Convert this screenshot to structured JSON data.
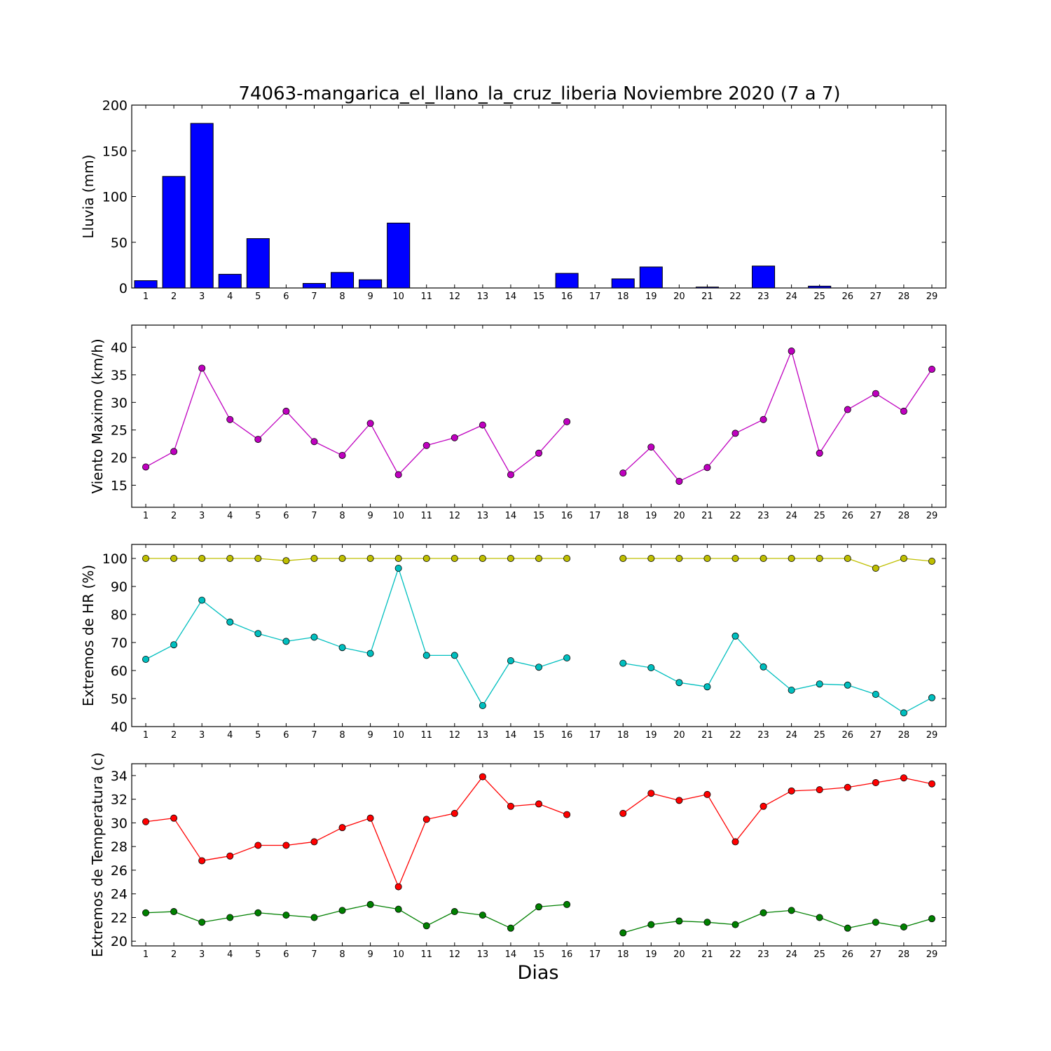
{
  "title": "74063-mangarica_el_llano_la_cruz_liberia Noviembre 2020  (7 a 7)",
  "xlabel": "Dias",
  "days": [
    1,
    2,
    3,
    4,
    5,
    6,
    7,
    8,
    9,
    10,
    11,
    12,
    13,
    14,
    15,
    16,
    17,
    18,
    19,
    20,
    21,
    22,
    23,
    24,
    25,
    26,
    27,
    28,
    29
  ],
  "chart_data": [
    {
      "type": "bar",
      "ylabel": "Lluvia (mm)",
      "ylim": [
        0,
        200
      ],
      "yticks": [
        0,
        50,
        100,
        150,
        200
      ],
      "categories": [
        1,
        2,
        3,
        4,
        5,
        6,
        7,
        8,
        9,
        10,
        11,
        12,
        13,
        14,
        15,
        16,
        17,
        18,
        19,
        20,
        21,
        22,
        23,
        24,
        25,
        26,
        27,
        28,
        29
      ],
      "series": [
        {
          "color": "#0000ff",
          "values": [
            8,
            122,
            180,
            15,
            54,
            0,
            5,
            17,
            9,
            71,
            0,
            0,
            0,
            0,
            0,
            16,
            0,
            10,
            23,
            0,
            1,
            0,
            24,
            0,
            2,
            0,
            0,
            0,
            0
          ]
        }
      ]
    },
    {
      "type": "line",
      "ylabel": "Viento Maximo (km/h)",
      "ylim": [
        11,
        44
      ],
      "yticks": [
        15,
        20,
        25,
        30,
        35,
        40
      ],
      "x": [
        1,
        2,
        3,
        4,
        5,
        6,
        7,
        8,
        9,
        10,
        11,
        12,
        13,
        14,
        15,
        16,
        17,
        18,
        19,
        20,
        21,
        22,
        23,
        24,
        25,
        26,
        27,
        28,
        29
      ],
      "series": [
        {
          "color": "#bf00bf",
          "values": [
            18.3,
            21.1,
            36.2,
            26.9,
            23.3,
            28.4,
            22.9,
            20.4,
            26.2,
            16.9,
            22.2,
            23.6,
            25.9,
            16.9,
            20.8,
            26.5,
            null,
            17.2,
            21.9,
            15.7,
            18.2,
            24.4,
            26.9,
            39.3,
            20.8,
            28.7,
            31.6,
            28.4,
            36.0
          ]
        }
      ]
    },
    {
      "type": "line",
      "ylabel": "Extremos de HR (%)",
      "ylim": [
        40,
        105
      ],
      "yticks": [
        40,
        50,
        60,
        70,
        80,
        90,
        100
      ],
      "x": [
        1,
        2,
        3,
        4,
        5,
        6,
        7,
        8,
        9,
        10,
        11,
        12,
        13,
        14,
        15,
        16,
        17,
        18,
        19,
        20,
        21,
        22,
        23,
        24,
        25,
        26,
        27,
        28,
        29
      ],
      "series": [
        {
          "color": "#bfbf00",
          "values": [
            100,
            100,
            100,
            100,
            100,
            99.2,
            100,
            100,
            100,
            100,
            100,
            100,
            100,
            100,
            100,
            100,
            null,
            100,
            100,
            100,
            100,
            100,
            100,
            100,
            100,
            100,
            96.5,
            100,
            99
          ]
        },
        {
          "color": "#00bfbf",
          "values": [
            64,
            69.2,
            85.1,
            77.3,
            73.2,
            70.4,
            71.9,
            68.2,
            66.1,
            96.5,
            65.4,
            65.4,
            47.5,
            63.5,
            61.2,
            64.5,
            null,
            62.6,
            61,
            55.7,
            54.2,
            72.3,
            61.3,
            53,
            55.2,
            54.8,
            51.5,
            44.9,
            50.3
          ]
        }
      ]
    },
    {
      "type": "line",
      "ylabel": "Extremos de Temperatura (c)",
      "ylim": [
        19.6,
        35
      ],
      "yticks": [
        20,
        22,
        24,
        26,
        28,
        30,
        32,
        34
      ],
      "x": [
        1,
        2,
        3,
        4,
        5,
        6,
        7,
        8,
        9,
        10,
        11,
        12,
        13,
        14,
        15,
        16,
        17,
        18,
        19,
        20,
        21,
        22,
        23,
        24,
        25,
        26,
        27,
        28,
        29
      ],
      "series": [
        {
          "color": "#ff0000",
          "values": [
            30.1,
            30.4,
            26.8,
            27.2,
            28.1,
            28.1,
            28.4,
            29.6,
            30.4,
            24.6,
            30.3,
            30.8,
            33.9,
            31.4,
            31.6,
            30.7,
            null,
            30.8,
            32.5,
            31.9,
            32.4,
            28.4,
            31.4,
            32.7,
            32.8,
            33.0,
            33.4,
            33.8,
            33.3
          ]
        },
        {
          "color": "#008000",
          "values": [
            22.4,
            22.5,
            21.6,
            22.0,
            22.4,
            22.2,
            22.0,
            22.6,
            23.1,
            22.7,
            21.3,
            22.5,
            22.2,
            21.1,
            22.9,
            23.1,
            null,
            20.7,
            21.4,
            21.7,
            21.6,
            21.4,
            22.4,
            22.6,
            22.0,
            21.1,
            21.6,
            21.2,
            21.9
          ]
        }
      ]
    }
  ]
}
